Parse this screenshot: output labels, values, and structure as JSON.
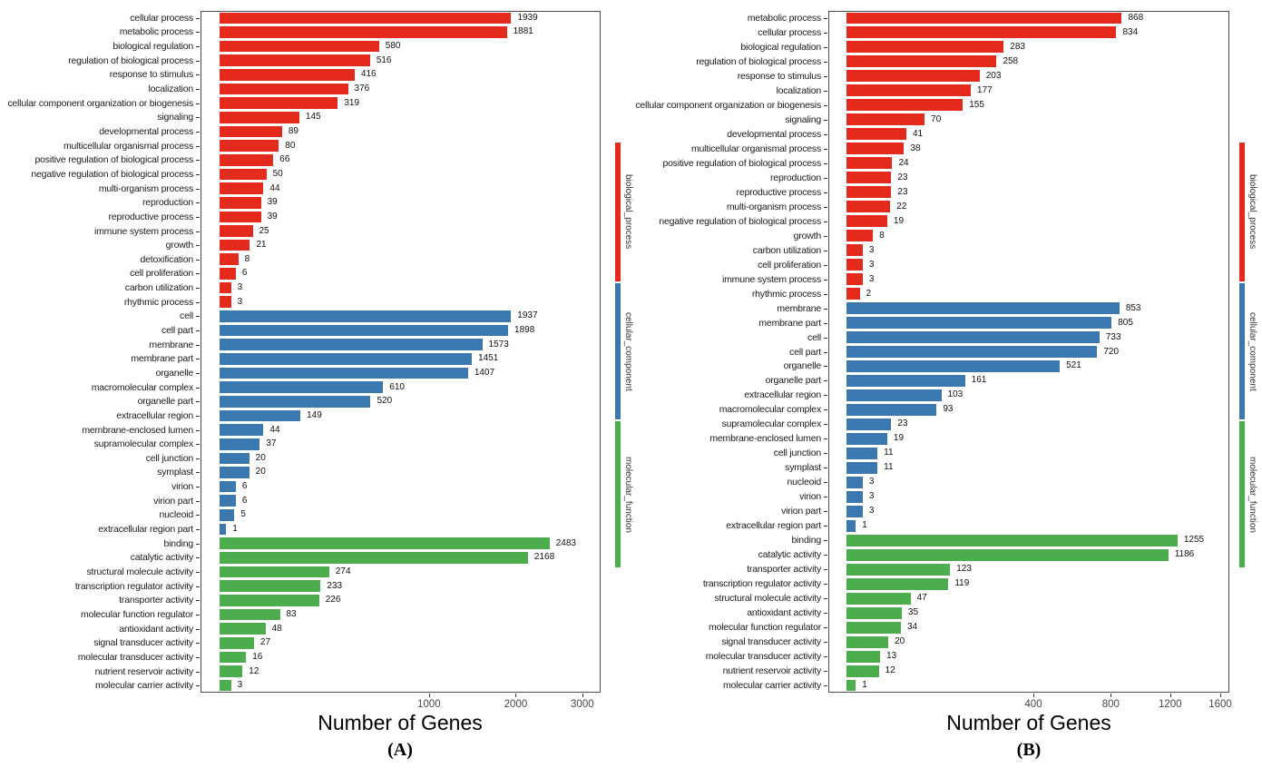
{
  "chart_data": [
    {
      "type": "bar",
      "orientation": "horizontal",
      "caption": "(A)",
      "xlabel": "Number of Genes",
      "x_scale": "sqrt",
      "x_ticks": [
        1000,
        2000,
        3000
      ],
      "grid": false,
      "value_labels_shown": true,
      "groups": [
        {
          "label": "biological_process",
          "color": "#E42A1D",
          "categories": [
            "cellular process",
            "metabolic process",
            "biological regulation",
            "regulation of biological process",
            "response to stimulus",
            "localization",
            "cellular component organization or biogenesis",
            "signaling",
            "developmental process",
            "multicellular organismal process",
            "positive regulation of biological process",
            "negative regulation of biological process",
            "multi-organism process",
            "reproduction",
            "reproductive process",
            "immune system process",
            "growth",
            "detoxification",
            "cell proliferation",
            "carbon utilization",
            "rhythmic process"
          ],
          "values": [
            1939,
            1881,
            580,
            516,
            416,
            376,
            319,
            145,
            89,
            80,
            66,
            50,
            44,
            39,
            39,
            25,
            21,
            8,
            6,
            3,
            3
          ]
        },
        {
          "label": "cellular_component",
          "color": "#3B78AF",
          "categories": [
            "cell",
            "cell part",
            "membrane",
            "membrane part",
            "organelle",
            "macromolecular complex",
            "organelle part",
            "extracellular region",
            "membrane-enclosed lumen",
            "supramolecular complex",
            "cell junction",
            "symplast",
            "virion",
            "virion part",
            "nucleoid",
            "extracellular region part"
          ],
          "values": [
            1937,
            1898,
            1573,
            1451,
            1407,
            610,
            520,
            149,
            44,
            37,
            20,
            20,
            6,
            6,
            5,
            1
          ]
        },
        {
          "label": "molecular_function",
          "color": "#4BAD4B",
          "categories": [
            "binding",
            "catalytic activity",
            "structural molecule activity",
            "transcription regulator activity",
            "transporter activity",
            "molecular function regulator",
            "antioxidant activity",
            "signal transducer activity",
            "molecular transducer activity",
            "nutrient reservoir activity",
            "molecular carrier activity"
          ],
          "values": [
            2483,
            2168,
            274,
            233,
            226,
            83,
            48,
            27,
            16,
            12,
            3
          ]
        }
      ]
    },
    {
      "type": "bar",
      "orientation": "horizontal",
      "caption": "(B)",
      "xlabel": "Number of Genes",
      "x_scale": "sqrt",
      "x_ticks": [
        400,
        800,
        1200,
        1600
      ],
      "grid": false,
      "value_labels_shown": true,
      "groups": [
        {
          "label": "biological_process",
          "color": "#E42A1D",
          "categories": [
            "metabolic process",
            "cellular process",
            "biological regulation",
            "regulation of biological process",
            "response to stimulus",
            "localization",
            "cellular component organization or biogenesis",
            "signaling",
            "developmental process",
            "multicellular organismal process",
            "positive regulation of biological process",
            "reproduction",
            "reproductive process",
            "multi-organism process",
            "negative regulation of biological process",
            "growth",
            "carbon utilization",
            "cell proliferation",
            "immune system process",
            "rhythmic process"
          ],
          "values": [
            868,
            834,
            283,
            258,
            203,
            177,
            155,
            70,
            41,
            38,
            24,
            23,
            23,
            22,
            19,
            8,
            3,
            3,
            3,
            2
          ]
        },
        {
          "label": "cellular_component",
          "color": "#3B78AF",
          "categories": [
            "membrane",
            "membrane part",
            "cell",
            "cell part",
            "organelle",
            "organelle part",
            "extracellular region",
            "macromolecular complex",
            "supramolecular complex",
            "membrane-enclosed lumen",
            "cell junction",
            "symplast",
            "nucleoid",
            "virion",
            "virion part",
            "extracellular region part"
          ],
          "values": [
            853,
            805,
            733,
            720,
            521,
            161,
            103,
            93,
            23,
            19,
            11,
            11,
            3,
            3,
            3,
            1
          ]
        },
        {
          "label": "molecular_function",
          "color": "#4BAD4B",
          "categories": [
            "binding",
            "catalytic activity",
            "transporter activity",
            "transcription regulator activity",
            "structural molecule activity",
            "antioxidant activity",
            "molecular function regulator",
            "signal transducer activity",
            "molecular transducer activity",
            "nutrient reservoir activity",
            "molecular carrier activity"
          ],
          "values": [
            1255,
            1186,
            123,
            119,
            47,
            35,
            34,
            20,
            13,
            12,
            1
          ]
        }
      ]
    }
  ]
}
